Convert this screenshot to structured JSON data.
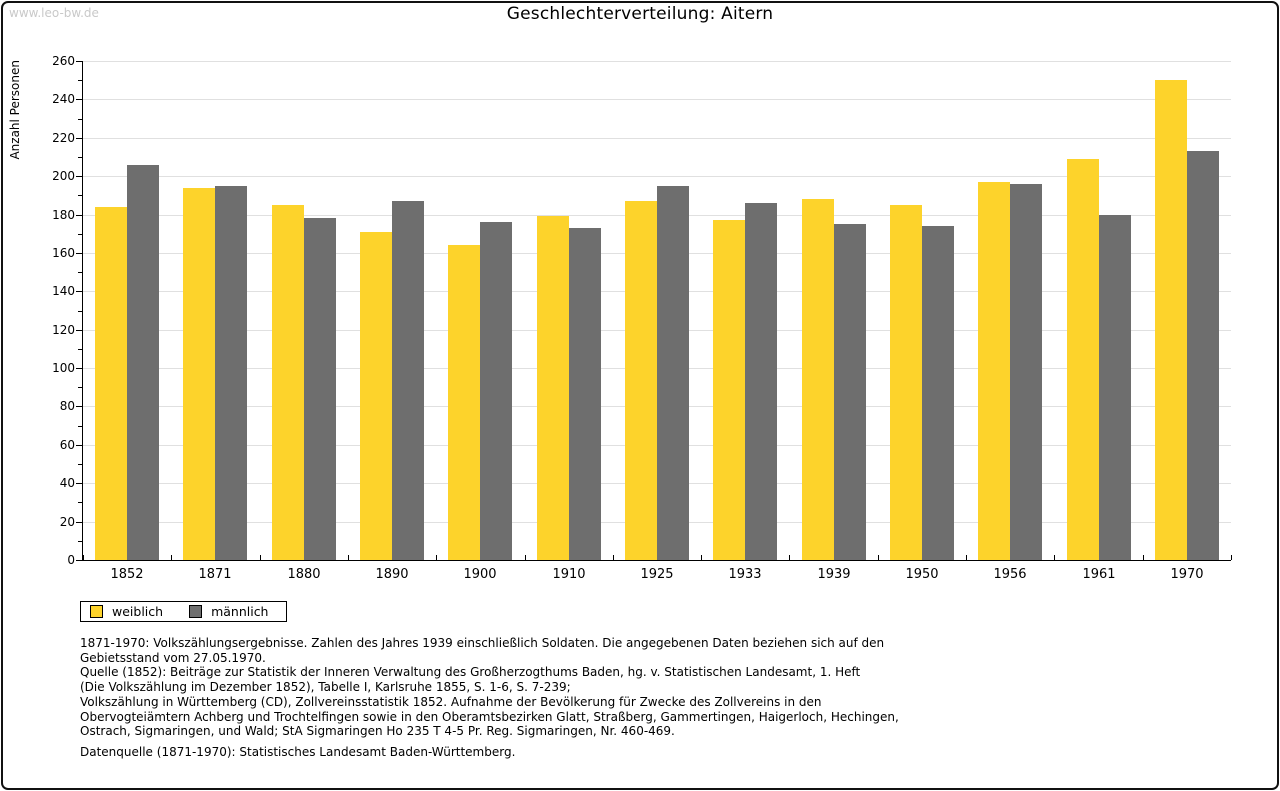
{
  "page": {
    "watermark": "www.leo-bw.de"
  },
  "chart_data": {
    "type": "bar",
    "title": "Geschlechterverteilung: Aitern",
    "xlabel": "",
    "ylabel": "Anzahl Personen",
    "categories": [
      "1852",
      "1871",
      "1880",
      "1890",
      "1900",
      "1910",
      "1925",
      "1933",
      "1939",
      "1950",
      "1956",
      "1961",
      "1970"
    ],
    "series": [
      {
        "name": "weiblich",
        "color": "#fdd32b",
        "values": [
          184,
          194,
          185,
          171,
          164,
          179,
          187,
          177,
          188,
          185,
          197,
          209,
          250
        ]
      },
      {
        "name": "männlich",
        "color": "#6e6e6e",
        "values": [
          206,
          195,
          178,
          187,
          176,
          173,
          195,
          186,
          175,
          174,
          196,
          180,
          213
        ]
      }
    ],
    "ylim": [
      0,
      260
    ],
    "ytick_step": 20,
    "y_minor_step": 10,
    "grid": true,
    "gridline_color": "#e0e0e0",
    "legend_position": "bottom-left"
  },
  "footer": {
    "lines": [
      "1871-1970: Volkszählungsergebnisse. Zahlen des Jahres 1939 einschließlich Soldaten. Die angegebenen Daten beziehen sich auf den",
      "Gebietsstand vom 27.05.1970.",
      "Quelle (1852): Beiträge zur Statistik der Inneren Verwaltung des Großherzogthums Baden, hg. v. Statistischen Landesamt, 1. Heft",
      "(Die Volkszählung im Dezember 1852), Tabelle I, Karlsruhe 1855, S. 1-6, S. 7-239;",
      "Volkszählung in Württemberg (CD), Zollvereinsstatistik 1852. Aufnahme der Bevölkerung für Zwecke des Zollvereins in den",
      "Obervogteiämtern Achberg und Trochtelfingen sowie in den Oberamtsbezirken Glatt, Straßberg, Gammertingen, Haigerloch, Hechingen,",
      "Ostrach, Sigmaringen, und Wald; StA Sigmaringen Ho 235 T 4-5 Pr. Reg. Sigmaringen, Nr. 460-469."
    ],
    "datasource": "Datenquelle (1871-1970): Statistisches Landesamt Baden-Württemberg."
  }
}
